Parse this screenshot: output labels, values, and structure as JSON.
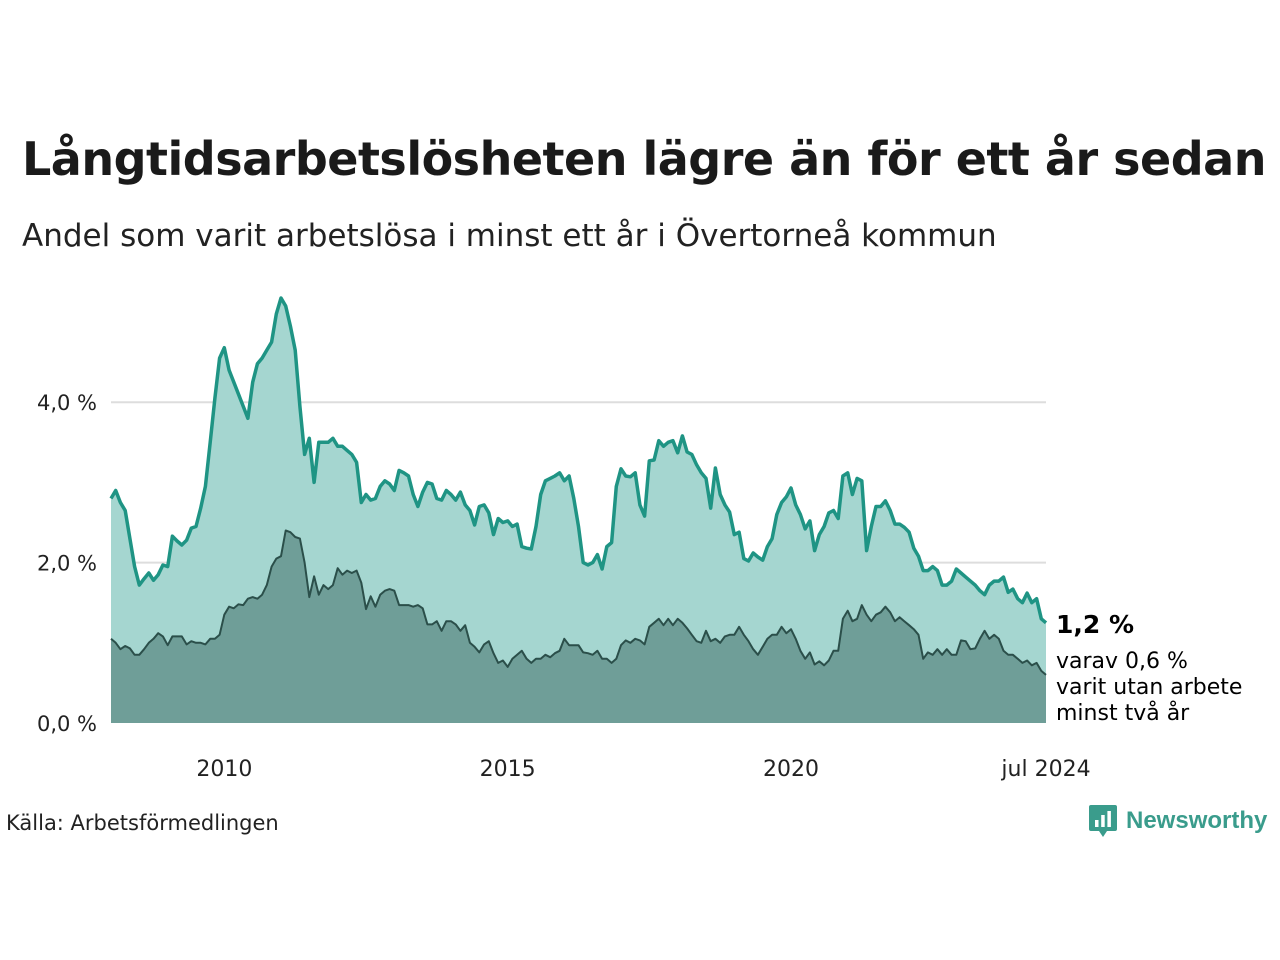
{
  "header": {
    "title": "Långtidsarbetslösheten lägre än för ett år sedan",
    "subtitle": "Andel som varit arbetslösa i minst ett år i Övertorneå kommun"
  },
  "footer": {
    "source": "Källa: Arbetsförmedlingen",
    "brand": "Newsworthy"
  },
  "annotation": {
    "value": "1,2 %",
    "note_lines": [
      "varav 0,6 %",
      "varit utan arbete",
      "minst två år"
    ]
  },
  "colors": {
    "area_light": "#a5d6d0",
    "line_light": "#1f9484",
    "area_dark": "#6f9e98",
    "line_dark": "#2b4f4a",
    "grid": "#dddddd",
    "brand": "#3a9c8c"
  },
  "chart_data": {
    "type": "area",
    "title": "Långtidsarbetslösheten lägre än för ett år sedan",
    "xlabel": "",
    "ylabel": "",
    "ylim": [
      0,
      5.3
    ],
    "x_start": 2008.0,
    "x_end": 2024.5,
    "x_ticks": [
      {
        "value": 2010,
        "label": "2010"
      },
      {
        "value": 2015,
        "label": "2015"
      },
      {
        "value": 2020,
        "label": "2020"
      },
      {
        "value": 2024.5,
        "label": "jul 2024"
      }
    ],
    "y_ticks": [
      {
        "value": 0,
        "label": "0,0 %"
      },
      {
        "value": 2,
        "label": "2,0 %"
      },
      {
        "value": 4,
        "label": "4,0 %"
      }
    ],
    "series": [
      {
        "name": "Arbetslösa minst ett år",
        "values": [
          2.8,
          2.9,
          2.75,
          2.65,
          2.3,
          1.95,
          1.72,
          1.8,
          1.87,
          1.78,
          1.85,
          1.97,
          1.95,
          2.33,
          2.27,
          2.22,
          2.28,
          2.43,
          2.45,
          2.68,
          2.95,
          3.5,
          4.05,
          4.55,
          4.68,
          4.4,
          4.25,
          4.1,
          3.95,
          3.8,
          4.25,
          4.48,
          4.55,
          4.65,
          4.75,
          5.1,
          5.3,
          5.2,
          4.95,
          4.65,
          3.95,
          3.35,
          3.55,
          3.0,
          3.5,
          3.5,
          3.5,
          3.55,
          3.45,
          3.45,
          3.4,
          3.35,
          3.25,
          2.75,
          2.85,
          2.78,
          2.8,
          2.95,
          3.02,
          2.98,
          2.9,
          3.15,
          3.12,
          3.08,
          2.85,
          2.7,
          2.88,
          3.0,
          2.98,
          2.8,
          2.78,
          2.9,
          2.85,
          2.78,
          2.88,
          2.72,
          2.65,
          2.47,
          2.7,
          2.72,
          2.62,
          2.35,
          2.55,
          2.5,
          2.52,
          2.45,
          2.48,
          2.2,
          2.18,
          2.17,
          2.45,
          2.85,
          3.02,
          3.05,
          3.08,
          3.12,
          3.02,
          3.08,
          2.8,
          2.45,
          2.0,
          1.97,
          2.0,
          2.1,
          1.92,
          2.2,
          2.25,
          2.95,
          3.17,
          3.08,
          3.07,
          3.12,
          2.72,
          2.58,
          3.27,
          3.28,
          3.52,
          3.45,
          3.5,
          3.52,
          3.37,
          3.58,
          3.38,
          3.35,
          3.22,
          3.12,
          3.05,
          2.68,
          3.18,
          2.85,
          2.72,
          2.63,
          2.35,
          2.38,
          2.05,
          2.02,
          2.12,
          2.07,
          2.03,
          2.2,
          2.3,
          2.6,
          2.75,
          2.82,
          2.93,
          2.72,
          2.6,
          2.42,
          2.52,
          2.15,
          2.35,
          2.45,
          2.62,
          2.65,
          2.55,
          3.08,
          3.12,
          2.85,
          3.05,
          3.02,
          2.15,
          2.45,
          2.7,
          2.7,
          2.77,
          2.65,
          2.48,
          2.48,
          2.44,
          2.38,
          2.18,
          2.08,
          1.9,
          1.9,
          1.95,
          1.9,
          1.72,
          1.72,
          1.77,
          1.92,
          1.87,
          1.82,
          1.77,
          1.72,
          1.65,
          1.6,
          1.72,
          1.77,
          1.77,
          1.82,
          1.63,
          1.67,
          1.55,
          1.5,
          1.62,
          1.5,
          1.55,
          1.3,
          1.25
        ]
      },
      {
        "name": "varav minst två år",
        "values": [
          1.05,
          1.0,
          0.92,
          0.96,
          0.93,
          0.85,
          0.85,
          0.92,
          1.0,
          1.05,
          1.12,
          1.08,
          0.97,
          1.08,
          1.08,
          1.08,
          0.98,
          1.02,
          1.0,
          1.0,
          0.98,
          1.05,
          1.05,
          1.1,
          1.35,
          1.45,
          1.43,
          1.48,
          1.47,
          1.55,
          1.57,
          1.55,
          1.6,
          1.72,
          1.95,
          2.05,
          2.08,
          2.4,
          2.38,
          2.32,
          2.3,
          2.0,
          1.57,
          1.83,
          1.6,
          1.72,
          1.67,
          1.72,
          1.93,
          1.85,
          1.9,
          1.87,
          1.9,
          1.75,
          1.42,
          1.58,
          1.45,
          1.6,
          1.65,
          1.67,
          1.65,
          1.47,
          1.47,
          1.47,
          1.45,
          1.47,
          1.43,
          1.23,
          1.23,
          1.27,
          1.15,
          1.27,
          1.27,
          1.23,
          1.15,
          1.22,
          1.0,
          0.95,
          0.88,
          0.98,
          1.02,
          0.87,
          0.75,
          0.78,
          0.7,
          0.8,
          0.85,
          0.9,
          0.8,
          0.75,
          0.8,
          0.8,
          0.85,
          0.82,
          0.87,
          0.9,
          1.05,
          0.97,
          0.97,
          0.97,
          0.88,
          0.87,
          0.85,
          0.9,
          0.8,
          0.8,
          0.75,
          0.8,
          0.97,
          1.03,
          1.0,
          1.05,
          1.03,
          0.98,
          1.2,
          1.25,
          1.3,
          1.22,
          1.3,
          1.22,
          1.3,
          1.25,
          1.18,
          1.1,
          1.02,
          1.0,
          1.15,
          1.02,
          1.05,
          1.0,
          1.08,
          1.1,
          1.1,
          1.2,
          1.1,
          1.02,
          0.92,
          0.85,
          0.95,
          1.05,
          1.1,
          1.1,
          1.2,
          1.12,
          1.17,
          1.05,
          0.9,
          0.8,
          0.88,
          0.73,
          0.77,
          0.72,
          0.78,
          0.9,
          0.9,
          1.3,
          1.4,
          1.27,
          1.3,
          1.47,
          1.35,
          1.27,
          1.35,
          1.38,
          1.45,
          1.38,
          1.27,
          1.32,
          1.27,
          1.22,
          1.17,
          1.1,
          0.8,
          0.88,
          0.85,
          0.92,
          0.85,
          0.92,
          0.85,
          0.85,
          1.03,
          1.02,
          0.92,
          0.93,
          1.05,
          1.15,
          1.05,
          1.1,
          1.05,
          0.9,
          0.85,
          0.85,
          0.8,
          0.75,
          0.78,
          0.72,
          0.75,
          0.65,
          0.6
        ]
      }
    ],
    "end_labels": {
      "total": "1,2 %",
      "two_year": "varav 0,6 %"
    }
  }
}
